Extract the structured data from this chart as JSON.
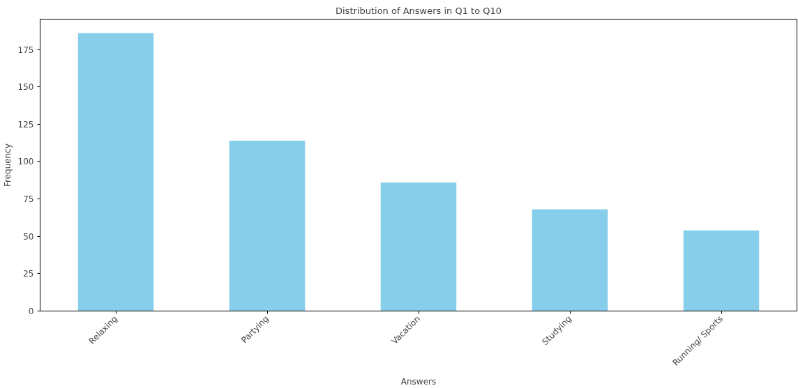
{
  "chart_data": {
    "type": "bar",
    "title": "Distribution of Answers in Q1 to Q10",
    "xlabel": "Answers",
    "ylabel": "Frequency",
    "categories": [
      "Relaxing",
      "Partying",
      "Vacation",
      "Studying",
      "Running/ Sports"
    ],
    "values": [
      186,
      114,
      86,
      68,
      54
    ],
    "color": "#87ceeb",
    "ylim": [
      0,
      195.3
    ],
    "yticks": [
      0,
      25,
      50,
      75,
      100,
      125,
      150,
      175
    ],
    "grid": false
  }
}
